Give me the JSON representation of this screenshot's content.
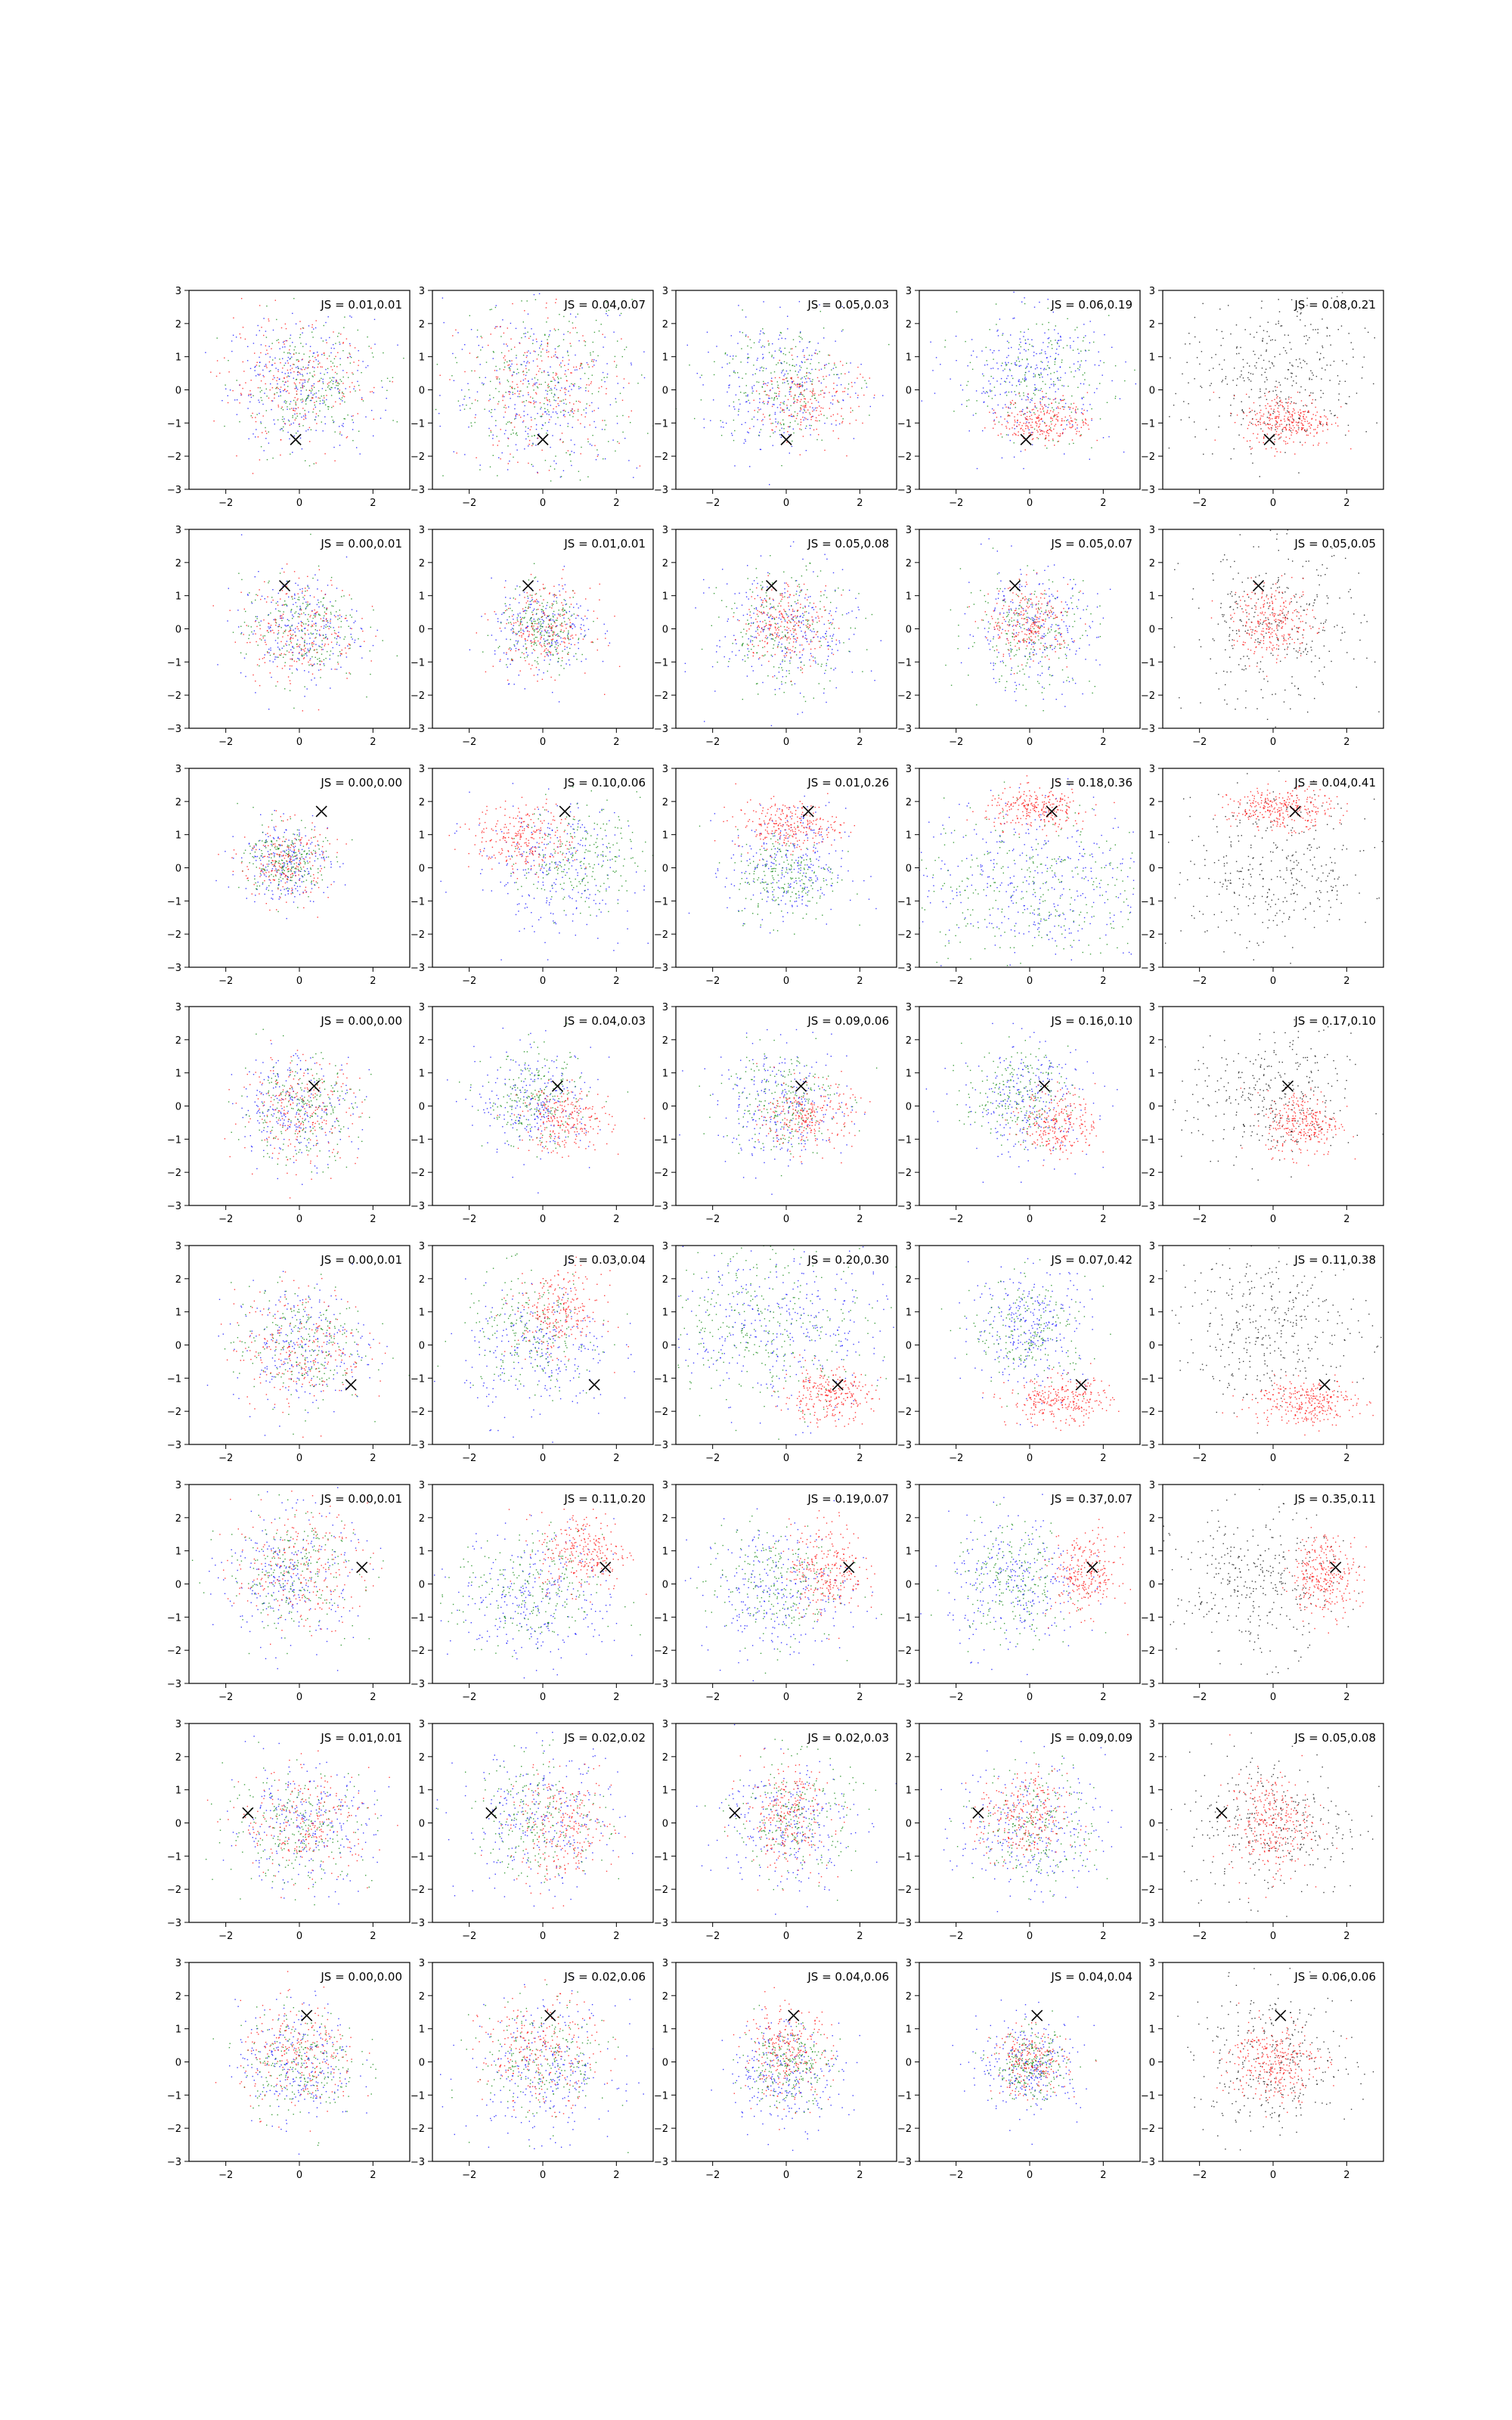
{
  "figure": {
    "rows": 8,
    "cols": 5,
    "series_colors": {
      "blue": "#0000ff",
      "green": "#008000",
      "red": "#ff0000",
      "black": "#000000",
      "marker": "#000000"
    },
    "axis_ticks": {
      "x": [
        "−2",
        "0",
        "2"
      ],
      "y": [
        "−3",
        "−2",
        "−1",
        "0",
        "1",
        "2",
        "3"
      ]
    }
  },
  "chart_data": [
    {
      "row": 1,
      "col": 1,
      "type": "scatter",
      "annotation": "JS = 0.01,0.01",
      "marker": [
        -0.1,
        -1.5
      ],
      "xlim": [
        -3,
        3
      ],
      "ylim": [
        -3,
        3
      ]
    },
    {
      "row": 1,
      "col": 2,
      "type": "scatter",
      "annotation": "JS = 0.04,0.07",
      "marker": [
        0.0,
        -1.5
      ],
      "xlim": [
        -3,
        3
      ],
      "ylim": [
        -3,
        3
      ]
    },
    {
      "row": 1,
      "col": 3,
      "type": "scatter",
      "annotation": "JS = 0.05,0.03",
      "marker": [
        0.0,
        -1.5
      ],
      "xlim": [
        -3,
        3
      ],
      "ylim": [
        -3,
        3
      ]
    },
    {
      "row": 1,
      "col": 4,
      "type": "scatter",
      "annotation": "JS = 0.06,0.19",
      "marker": [
        -0.1,
        -1.5
      ],
      "xlim": [
        -3,
        3
      ],
      "ylim": [
        -3,
        3
      ]
    },
    {
      "row": 1,
      "col": 5,
      "type": "scatter",
      "annotation": "JS = 0.08,0.21",
      "marker": [
        -0.1,
        -1.5
      ],
      "xlim": [
        -3,
        3
      ],
      "ylim": [
        -3,
        3
      ]
    },
    {
      "row": 2,
      "col": 1,
      "type": "scatter",
      "annotation": "JS = 0.00,0.01",
      "marker": [
        -0.4,
        1.3
      ],
      "xlim": [
        -3,
        3
      ],
      "ylim": [
        -3,
        3
      ]
    },
    {
      "row": 2,
      "col": 2,
      "type": "scatter",
      "annotation": "JS = 0.01,0.01",
      "marker": [
        -0.4,
        1.3
      ],
      "xlim": [
        -3,
        3
      ],
      "ylim": [
        -3,
        3
      ]
    },
    {
      "row": 2,
      "col": 3,
      "type": "scatter",
      "annotation": "JS = 0.05,0.08",
      "marker": [
        -0.4,
        1.3
      ],
      "xlim": [
        -3,
        3
      ],
      "ylim": [
        -3,
        3
      ]
    },
    {
      "row": 2,
      "col": 4,
      "type": "scatter",
      "annotation": "JS = 0.05,0.07",
      "marker": [
        -0.4,
        1.3
      ],
      "xlim": [
        -3,
        3
      ],
      "ylim": [
        -3,
        3
      ]
    },
    {
      "row": 2,
      "col": 5,
      "type": "scatter",
      "annotation": "JS = 0.05,0.05",
      "marker": [
        -0.4,
        1.3
      ],
      "xlim": [
        -3,
        3
      ],
      "ylim": [
        -3,
        3
      ]
    },
    {
      "row": 3,
      "col": 1,
      "type": "scatter",
      "annotation": "JS = 0.00,0.00",
      "marker": [
        0.6,
        1.7
      ],
      "xlim": [
        -3,
        3
      ],
      "ylim": [
        -3,
        3
      ]
    },
    {
      "row": 3,
      "col": 2,
      "type": "scatter",
      "annotation": "JS = 0.10,0.06",
      "marker": [
        0.6,
        1.7
      ],
      "xlim": [
        -3,
        3
      ],
      "ylim": [
        -3,
        3
      ]
    },
    {
      "row": 3,
      "col": 3,
      "type": "scatter",
      "annotation": "JS = 0.01,0.26",
      "marker": [
        0.6,
        1.7
      ],
      "xlim": [
        -3,
        3
      ],
      "ylim": [
        -3,
        3
      ]
    },
    {
      "row": 3,
      "col": 4,
      "type": "scatter",
      "annotation": "JS = 0.18,0.36",
      "marker": [
        0.6,
        1.7
      ],
      "xlim": [
        -3,
        3
      ],
      "ylim": [
        -3,
        3
      ]
    },
    {
      "row": 3,
      "col": 5,
      "type": "scatter",
      "annotation": "JS = 0.04,0.41",
      "marker": [
        0.6,
        1.7
      ],
      "xlim": [
        -3,
        3
      ],
      "ylim": [
        -3,
        3
      ]
    },
    {
      "row": 4,
      "col": 1,
      "type": "scatter",
      "annotation": "JS = 0.00,0.00",
      "marker": [
        0.4,
        0.6
      ],
      "xlim": [
        -3,
        3
      ],
      "ylim": [
        -3,
        3
      ]
    },
    {
      "row": 4,
      "col": 2,
      "type": "scatter",
      "annotation": "JS = 0.04,0.03",
      "marker": [
        0.4,
        0.6
      ],
      "xlim": [
        -3,
        3
      ],
      "ylim": [
        -3,
        3
      ]
    },
    {
      "row": 4,
      "col": 3,
      "type": "scatter",
      "annotation": "JS = 0.09,0.06",
      "marker": [
        0.4,
        0.6
      ],
      "xlim": [
        -3,
        3
      ],
      "ylim": [
        -3,
        3
      ]
    },
    {
      "row": 4,
      "col": 4,
      "type": "scatter",
      "annotation": "JS = 0.16,0.10",
      "marker": [
        0.4,
        0.6
      ],
      "xlim": [
        -3,
        3
      ],
      "ylim": [
        -3,
        3
      ]
    },
    {
      "row": 4,
      "col": 5,
      "type": "scatter",
      "annotation": "JS = 0.17,0.10",
      "marker": [
        0.4,
        0.6
      ],
      "xlim": [
        -3,
        3
      ],
      "ylim": [
        -3,
        3
      ]
    },
    {
      "row": 5,
      "col": 1,
      "type": "scatter",
      "annotation": "JS = 0.00,0.01",
      "marker": [
        1.4,
        -1.2
      ],
      "xlim": [
        -3,
        3
      ],
      "ylim": [
        -3,
        3
      ]
    },
    {
      "row": 5,
      "col": 2,
      "type": "scatter",
      "annotation": "JS = 0.03,0.04",
      "marker": [
        1.4,
        -1.2
      ],
      "xlim": [
        -3,
        3
      ],
      "ylim": [
        -3,
        3
      ]
    },
    {
      "row": 5,
      "col": 3,
      "type": "scatter",
      "annotation": "JS = 0.20,0.30",
      "marker": [
        1.4,
        -1.2
      ],
      "xlim": [
        -3,
        3
      ],
      "ylim": [
        -3,
        3
      ]
    },
    {
      "row": 5,
      "col": 4,
      "type": "scatter",
      "annotation": "JS = 0.07,0.42",
      "marker": [
        1.4,
        -1.2
      ],
      "xlim": [
        -3,
        3
      ],
      "ylim": [
        -3,
        3
      ]
    },
    {
      "row": 5,
      "col": 5,
      "type": "scatter",
      "annotation": "JS = 0.11,0.38",
      "marker": [
        1.4,
        -1.2
      ],
      "xlim": [
        -3,
        3
      ],
      "ylim": [
        -3,
        3
      ]
    },
    {
      "row": 6,
      "col": 1,
      "type": "scatter",
      "annotation": "JS = 0.00,0.01",
      "marker": [
        1.7,
        0.5
      ],
      "xlim": [
        -3,
        3
      ],
      "ylim": [
        -3,
        3
      ]
    },
    {
      "row": 6,
      "col": 2,
      "type": "scatter",
      "annotation": "JS = 0.11,0.20",
      "marker": [
        1.7,
        0.5
      ],
      "xlim": [
        -3,
        3
      ],
      "ylim": [
        -3,
        3
      ]
    },
    {
      "row": 6,
      "col": 3,
      "type": "scatter",
      "annotation": "JS = 0.19,0.07",
      "marker": [
        1.7,
        0.5
      ],
      "xlim": [
        -3,
        3
      ],
      "ylim": [
        -3,
        3
      ]
    },
    {
      "row": 6,
      "col": 4,
      "type": "scatter",
      "annotation": "JS = 0.37,0.07",
      "marker": [
        1.7,
        0.5
      ],
      "xlim": [
        -3,
        3
      ],
      "ylim": [
        -3,
        3
      ]
    },
    {
      "row": 6,
      "col": 5,
      "type": "scatter",
      "annotation": "JS = 0.35,0.11",
      "marker": [
        1.7,
        0.5
      ],
      "xlim": [
        -3,
        3
      ],
      "ylim": [
        -3,
        3
      ]
    },
    {
      "row": 7,
      "col": 1,
      "type": "scatter",
      "annotation": "JS = 0.01,0.01",
      "marker": [
        -1.4,
        0.3
      ],
      "xlim": [
        -3,
        3
      ],
      "ylim": [
        -3,
        3
      ]
    },
    {
      "row": 7,
      "col": 2,
      "type": "scatter",
      "annotation": "JS = 0.02,0.02",
      "marker": [
        -1.4,
        0.3
      ],
      "xlim": [
        -3,
        3
      ],
      "ylim": [
        -3,
        3
      ]
    },
    {
      "row": 7,
      "col": 3,
      "type": "scatter",
      "annotation": "JS = 0.02,0.03",
      "marker": [
        -1.4,
        0.3
      ],
      "xlim": [
        -3,
        3
      ],
      "ylim": [
        -3,
        3
      ]
    },
    {
      "row": 7,
      "col": 4,
      "type": "scatter",
      "annotation": "JS = 0.09,0.09",
      "marker": [
        -1.4,
        0.3
      ],
      "xlim": [
        -3,
        3
      ],
      "ylim": [
        -3,
        3
      ]
    },
    {
      "row": 7,
      "col": 5,
      "type": "scatter",
      "annotation": "JS = 0.05,0.08",
      "marker": [
        -1.4,
        0.3
      ],
      "xlim": [
        -3,
        3
      ],
      "ylim": [
        -3,
        3
      ]
    },
    {
      "row": 8,
      "col": 1,
      "type": "scatter",
      "annotation": "JS = 0.00,0.00",
      "marker": [
        0.2,
        1.4
      ],
      "xlim": [
        -3,
        3
      ],
      "ylim": [
        -3,
        3
      ]
    },
    {
      "row": 8,
      "col": 2,
      "type": "scatter",
      "annotation": "JS = 0.02,0.06",
      "marker": [
        0.2,
        1.4
      ],
      "xlim": [
        -3,
        3
      ],
      "ylim": [
        -3,
        3
      ]
    },
    {
      "row": 8,
      "col": 3,
      "type": "scatter",
      "annotation": "JS = 0.04,0.06",
      "marker": [
        0.2,
        1.4
      ],
      "xlim": [
        -3,
        3
      ],
      "ylim": [
        -3,
        3
      ]
    },
    {
      "row": 8,
      "col": 4,
      "type": "scatter",
      "annotation": "JS = 0.04,0.04",
      "marker": [
        0.2,
        1.4
      ],
      "xlim": [
        -3,
        3
      ],
      "ylim": [
        -3,
        3
      ]
    },
    {
      "row": 8,
      "col": 5,
      "type": "scatter",
      "annotation": "JS = 0.06,0.06",
      "marker": [
        0.2,
        1.4
      ],
      "xlim": [
        -3,
        3
      ],
      "ylim": [
        -3,
        3
      ]
    }
  ]
}
